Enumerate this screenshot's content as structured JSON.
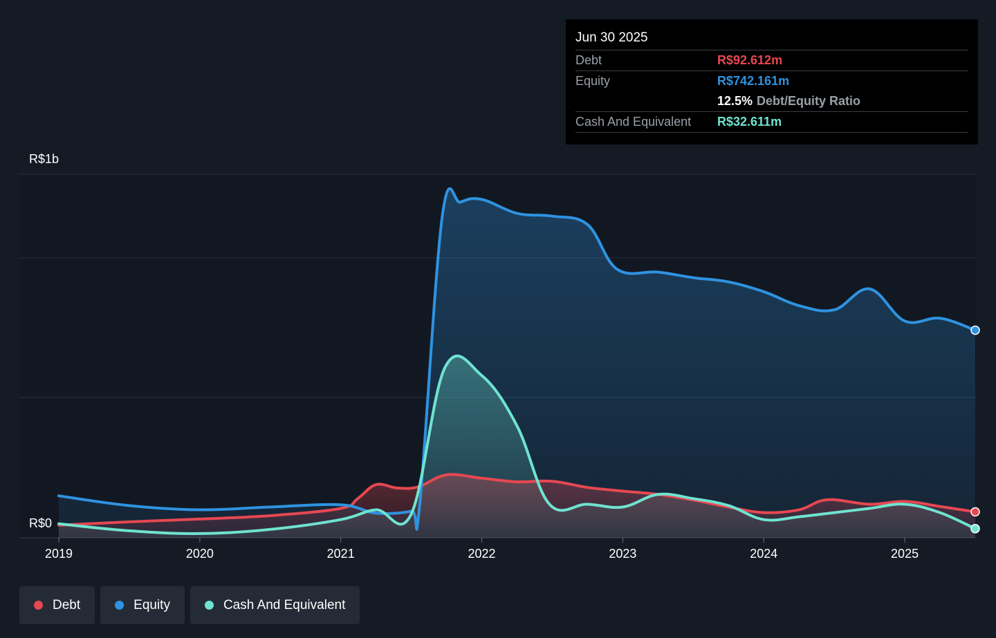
{
  "tooltip": {
    "date": "Jun 30 2025",
    "debt_label": "Debt",
    "debt_value": "R$92.612m",
    "equity_label": "Equity",
    "equity_value": "R$742.161m",
    "ratio_value": "12.5%",
    "ratio_label": "Debt/Equity Ratio",
    "cash_label": "Cash And Equivalent",
    "cash_value": "R$32.611m"
  },
  "colors": {
    "debt": "#e64852",
    "equity": "#2e93e0",
    "cash": "#6fe3d0"
  },
  "legend": [
    {
      "label": "Debt",
      "color": "#e64852"
    },
    {
      "label": "Equity",
      "color": "#2e93e0"
    },
    {
      "label": "Cash And Equivalent",
      "color": "#6fe3d0"
    }
  ],
  "chart_data": {
    "type": "area",
    "y_top_label": "R$1b",
    "y_bottom_label": "R$0",
    "ylim": [
      0,
      1300
    ],
    "xlim": [
      2019.0,
      2025.5
    ],
    "grid": true,
    "x_ticks": [
      "2019",
      "2020",
      "2021",
      "2022",
      "2023",
      "2024",
      "2025"
    ],
    "series": [
      {
        "name": "Debt",
        "color": "#e64852",
        "points": [
          [
            2019.0,
            45
          ],
          [
            2019.5,
            57
          ],
          [
            2020.0,
            67
          ],
          [
            2020.5,
            79
          ],
          [
            2021.0,
            105
          ],
          [
            2021.12,
            140
          ],
          [
            2021.25,
            190
          ],
          [
            2021.4,
            178
          ],
          [
            2021.55,
            182
          ],
          [
            2021.75,
            225
          ],
          [
            2022.0,
            213
          ],
          [
            2022.25,
            200
          ],
          [
            2022.5,
            202
          ],
          [
            2022.75,
            180
          ],
          [
            2023.0,
            167
          ],
          [
            2023.25,
            155
          ],
          [
            2023.5,
            135
          ],
          [
            2023.75,
            110
          ],
          [
            2024.0,
            90
          ],
          [
            2024.25,
            100
          ],
          [
            2024.45,
            136
          ],
          [
            2024.75,
            120
          ],
          [
            2025.0,
            130
          ],
          [
            2025.25,
            112
          ],
          [
            2025.5,
            92.612
          ]
        ]
      },
      {
        "name": "Equity",
        "color": "#2e93e0",
        "points": [
          [
            2019.0,
            150
          ],
          [
            2019.5,
            115
          ],
          [
            2020.0,
            100
          ],
          [
            2020.5,
            110
          ],
          [
            2021.0,
            118
          ],
          [
            2021.25,
            88
          ],
          [
            2021.5,
            95
          ],
          [
            2021.56,
            120
          ],
          [
            2021.72,
            1150
          ],
          [
            2021.85,
            1200
          ],
          [
            2022.0,
            1210
          ],
          [
            2022.25,
            1160
          ],
          [
            2022.5,
            1150
          ],
          [
            2022.75,
            1120
          ],
          [
            2022.96,
            960
          ],
          [
            2023.25,
            950
          ],
          [
            2023.5,
            930
          ],
          [
            2023.75,
            915
          ],
          [
            2024.0,
            880
          ],
          [
            2024.25,
            830
          ],
          [
            2024.5,
            815
          ],
          [
            2024.75,
            890
          ],
          [
            2025.0,
            775
          ],
          [
            2025.25,
            785
          ],
          [
            2025.5,
            742.161
          ]
        ]
      },
      {
        "name": "Cash And Equivalent",
        "color": "#6fe3d0",
        "points": [
          [
            2019.0,
            50
          ],
          [
            2019.5,
            25
          ],
          [
            2020.0,
            15
          ],
          [
            2020.5,
            30
          ],
          [
            2021.0,
            65
          ],
          [
            2021.25,
            100
          ],
          [
            2021.5,
            85
          ],
          [
            2021.74,
            610
          ],
          [
            2022.0,
            580
          ],
          [
            2022.25,
            400
          ],
          [
            2022.48,
            120
          ],
          [
            2022.75,
            120
          ],
          [
            2023.0,
            110
          ],
          [
            2023.25,
            155
          ],
          [
            2023.5,
            140
          ],
          [
            2023.75,
            115
          ],
          [
            2024.0,
            65
          ],
          [
            2024.25,
            75
          ],
          [
            2024.5,
            90
          ],
          [
            2024.75,
            105
          ],
          [
            2025.0,
            120
          ],
          [
            2025.25,
            90
          ],
          [
            2025.5,
            32.611
          ]
        ]
      }
    ]
  }
}
